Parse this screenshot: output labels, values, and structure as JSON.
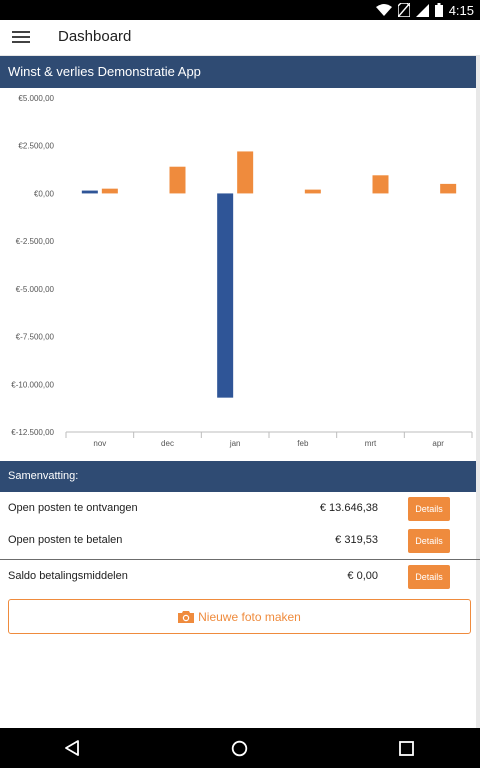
{
  "status_bar": {
    "time": "4:15",
    "icons": [
      "wifi-icon",
      "no-sim-icon",
      "signal-icon",
      "battery-icon"
    ]
  },
  "app_bar": {
    "title": "Dashboard",
    "menu_icon": "hamburger-menu-icon"
  },
  "chart_section": {
    "header": "Winst & verlies Demonstratie App"
  },
  "chart_data": {
    "type": "bar",
    "categories": [
      "nov",
      "dec",
      "jan",
      "feb",
      "mrt",
      "apr"
    ],
    "series": [
      {
        "color": "#2f5597",
        "values": [
          150,
          0,
          -10700,
          0,
          0,
          0
        ]
      },
      {
        "color": "#ef8b3d",
        "values": [
          250,
          1400,
          2200,
          200,
          950,
          500
        ]
      }
    ],
    "y_ticks": [
      5000,
      2500,
      0,
      -2500,
      -5000,
      -7500,
      -10000,
      -12500
    ],
    "y_tick_labels": [
      "€5.000,00",
      "€2.500,00",
      "€0,00",
      "€-2.500,00",
      "€-5.000,00",
      "€-7.500,00",
      "€-10.000,00",
      "€-12.500,00"
    ],
    "ylim": [
      -12500,
      5000
    ],
    "title": "",
    "xlabel": "",
    "ylabel": "",
    "grid": false,
    "legend": "none"
  },
  "summary": {
    "header": "Samenvatting:",
    "rows": [
      {
        "label": "Open posten te ontvangen",
        "value": "€ 13.646,38",
        "button": "Details"
      },
      {
        "label": "Open posten te betalen",
        "value": "€ 319,53",
        "button": "Details"
      },
      {
        "label": "Saldo betalingsmiddelen",
        "value": "€ 0,00",
        "button": "Details"
      }
    ]
  },
  "photo_button": {
    "label": "Nieuwe foto maken",
    "icon": "camera-icon"
  },
  "colors": {
    "header_bg": "#2f4b73",
    "accent": "#ef8b3d",
    "bar_blue": "#2f5597"
  },
  "nav_bar": {
    "icons": [
      "back-icon",
      "home-icon",
      "recents-icon"
    ]
  }
}
